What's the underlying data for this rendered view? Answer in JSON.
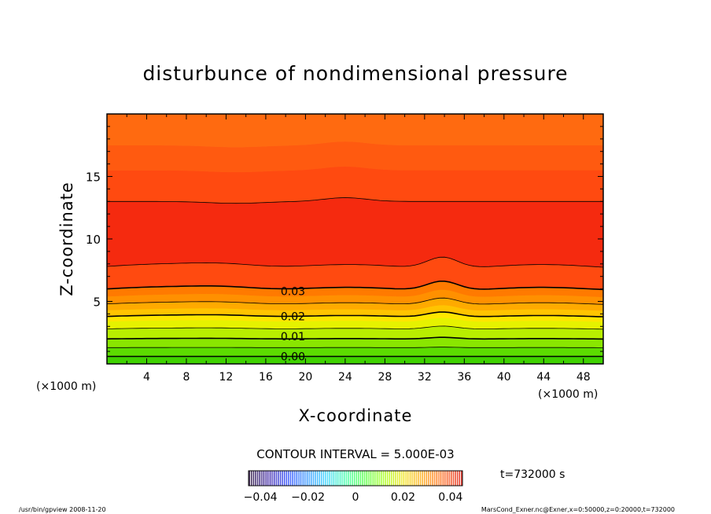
{
  "chart_data": {
    "type": "heatmap",
    "title": "disturbunce of nondimensional pressure",
    "xlabel": "X-coordinate",
    "ylabel": "Z-coordinate",
    "x_unit": "(×1000 m)",
    "y_unit": "(×1000 m)",
    "xlim": [
      0,
      50
    ],
    "ylim": [
      0,
      20
    ],
    "x_ticks": [
      "4",
      "8",
      "12",
      "16",
      "20",
      "24",
      "28",
      "32",
      "36",
      "40",
      "44",
      "48"
    ],
    "y_ticks": [
      "5",
      "10",
      "15"
    ],
    "contour_interval_label": "CONTOUR INTERVAL = 5.000E-03",
    "contour_labels": [
      {
        "text": "0.00",
        "value": 0.0,
        "x": 17.5,
        "z": 0.6
      },
      {
        "text": "0.01",
        "value": 0.01,
        "x": 17.5,
        "z": 2.2
      },
      {
        "text": "0.02",
        "value": 0.02,
        "x": 17.5,
        "z": 3.8
      },
      {
        "text": "0.03",
        "value": 0.03,
        "x": 17.5,
        "z": 5.8
      }
    ],
    "contour_profiles": [
      {
        "value": 0.0,
        "base_z": 0.6
      },
      {
        "value": 0.005,
        "base_z": 1.3
      },
      {
        "value": 0.01,
        "base_z": 2.0
      },
      {
        "value": 0.015,
        "base_z": 2.8
      },
      {
        "value": 0.02,
        "base_z": 3.8
      },
      {
        "value": 0.025,
        "base_z": 4.8
      },
      {
        "value": 0.03,
        "base_z": 6.0
      },
      {
        "value": 0.035,
        "base_z": 7.8
      },
      {
        "value": 0.035,
        "base_z": 13.0
      }
    ],
    "color_bands": [
      {
        "z_from": 0.0,
        "z_to": 0.6,
        "color": "#3fd200"
      },
      {
        "z_from": 0.6,
        "z_to": 1.3,
        "color": "#5cdc00"
      },
      {
        "z_from": 1.3,
        "z_to": 2.0,
        "color": "#8ae600"
      },
      {
        "z_from": 2.0,
        "z_to": 2.8,
        "color": "#b8ee00"
      },
      {
        "z_from": 2.8,
        "z_to": 3.4,
        "color": "#e6f200"
      },
      {
        "z_from": 3.4,
        "z_to": 3.8,
        "color": "#ffe600"
      },
      {
        "z_from": 3.8,
        "z_to": 4.3,
        "color": "#ffc400"
      },
      {
        "z_from": 4.3,
        "z_to": 4.8,
        "color": "#ffaa00"
      },
      {
        "z_from": 4.8,
        "z_to": 5.4,
        "color": "#ff9000"
      },
      {
        "z_from": 5.4,
        "z_to": 6.0,
        "color": "#ff7a00"
      },
      {
        "z_from": 6.0,
        "z_to": 7.8,
        "color": "#ff4a10"
      },
      {
        "z_from": 7.8,
        "z_to": 13.0,
        "color": "#f52a0f"
      },
      {
        "z_from": 13.0,
        "z_to": 15.5,
        "color": "#ff4a10"
      },
      {
        "z_from": 15.5,
        "z_to": 17.5,
        "color": "#ff5a10"
      },
      {
        "z_from": 17.5,
        "z_to": 20.0,
        "color": "#ff6a10"
      }
    ],
    "colorbar": {
      "ticks": [
        "−0.04",
        "−0.02",
        "0",
        "0.02",
        "0.04"
      ],
      "tick_values": [
        -0.04,
        -0.02,
        0,
        0.02,
        0.04
      ],
      "range": [
        -0.045,
        0.045
      ],
      "colors": [
        "#1a0030",
        "#2a0fa0",
        "#1e40ff",
        "#1e8cff",
        "#28d2ff",
        "#2effa0",
        "#44ff30",
        "#a0ff00",
        "#f0e000",
        "#ffa000",
        "#ff5a00",
        "#e01000"
      ]
    }
  },
  "time_label": "t=732000 s",
  "footer": {
    "left": "/usr/bin/gpview   2008-11-20",
    "right": "MarsCond_Exner.nc@Exner,x=0:50000,z=0:20000,t=732000"
  }
}
